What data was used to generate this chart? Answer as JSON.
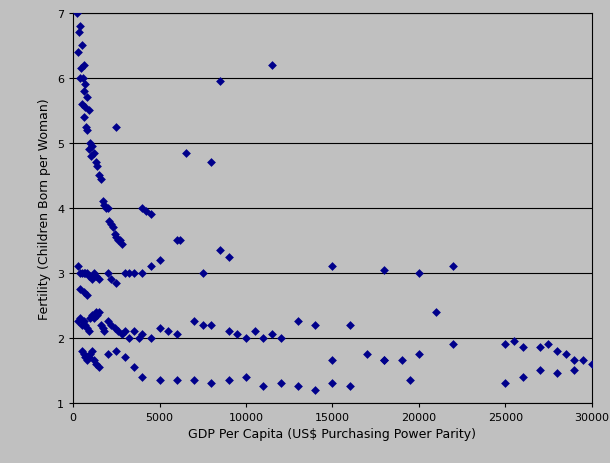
{
  "title": "",
  "xlabel": "GDP Per Capita (US$ Purchasing Power Parity)",
  "ylabel": "Fertility (Children Born per Woman)",
  "xlim": [
    0,
    30000
  ],
  "ylim": [
    1,
    7
  ],
  "xticks": [
    0,
    5000,
    10000,
    15000,
    20000,
    25000,
    30000
  ],
  "yticks": [
    1,
    2,
    3,
    4,
    5,
    6,
    7
  ],
  "background_color": "#c0c0c0",
  "fig_background_color": "#c0c0c0",
  "marker_color": "#00008B",
  "marker_size": 20,
  "points": [
    [
      200,
      7.0
    ],
    [
      400,
      6.8
    ],
    [
      350,
      6.7
    ],
    [
      500,
      6.5
    ],
    [
      300,
      6.4
    ],
    [
      600,
      6.2
    ],
    [
      450,
      6.15
    ],
    [
      400,
      6.0
    ],
    [
      550,
      6.0
    ],
    [
      700,
      5.9
    ],
    [
      600,
      5.8
    ],
    [
      800,
      5.7
    ],
    [
      500,
      5.6
    ],
    [
      700,
      5.55
    ],
    [
      900,
      5.5
    ],
    [
      650,
      5.4
    ],
    [
      750,
      5.25
    ],
    [
      800,
      5.2
    ],
    [
      1000,
      5.0
    ],
    [
      1100,
      4.95
    ],
    [
      900,
      4.9
    ],
    [
      1200,
      4.85
    ],
    [
      1050,
      4.8
    ],
    [
      2500,
      5.25
    ],
    [
      1300,
      4.7
    ],
    [
      1400,
      4.65
    ],
    [
      1500,
      4.5
    ],
    [
      1600,
      4.45
    ],
    [
      6500,
      4.85
    ],
    [
      8000,
      4.7
    ],
    [
      1700,
      4.1
    ],
    [
      1800,
      4.05
    ],
    [
      1900,
      4.0
    ],
    [
      2000,
      4.0
    ],
    [
      4000,
      4.0
    ],
    [
      4200,
      3.95
    ],
    [
      4500,
      3.9
    ],
    [
      2100,
      3.8
    ],
    [
      2200,
      3.75
    ],
    [
      2300,
      3.7
    ],
    [
      2400,
      3.6
    ],
    [
      2500,
      3.55
    ],
    [
      2600,
      3.5
    ],
    [
      2700,
      3.5
    ],
    [
      2800,
      3.45
    ],
    [
      6000,
      3.5
    ],
    [
      6200,
      3.5
    ],
    [
      8500,
      3.35
    ],
    [
      9000,
      3.25
    ],
    [
      300,
      3.1
    ],
    [
      400,
      3.0
    ],
    [
      500,
      3.0
    ],
    [
      600,
      3.0
    ],
    [
      700,
      3.0
    ],
    [
      800,
      3.0
    ],
    [
      900,
      2.95
    ],
    [
      1000,
      2.95
    ],
    [
      1100,
      2.9
    ],
    [
      1200,
      3.0
    ],
    [
      1300,
      2.95
    ],
    [
      1500,
      2.9
    ],
    [
      2000,
      3.0
    ],
    [
      2200,
      2.9
    ],
    [
      2500,
      2.85
    ],
    [
      3000,
      3.0
    ],
    [
      3200,
      3.0
    ],
    [
      3500,
      3.0
    ],
    [
      4000,
      3.0
    ],
    [
      4500,
      3.1
    ],
    [
      5000,
      3.2
    ],
    [
      7500,
      3.0
    ],
    [
      15000,
      3.1
    ],
    [
      18000,
      3.05
    ],
    [
      20000,
      3.0
    ],
    [
      22000,
      3.1
    ],
    [
      300,
      2.25
    ],
    [
      400,
      2.3
    ],
    [
      500,
      2.2
    ],
    [
      600,
      2.25
    ],
    [
      700,
      2.2
    ],
    [
      800,
      2.15
    ],
    [
      900,
      2.1
    ],
    [
      1000,
      2.3
    ],
    [
      1100,
      2.35
    ],
    [
      1200,
      2.3
    ],
    [
      1300,
      2.4
    ],
    [
      1400,
      2.35
    ],
    [
      1500,
      2.4
    ],
    [
      1600,
      2.2
    ],
    [
      1700,
      2.15
    ],
    [
      1800,
      2.1
    ],
    [
      2000,
      2.25
    ],
    [
      2200,
      2.2
    ],
    [
      2400,
      2.15
    ],
    [
      2600,
      2.1
    ],
    [
      2800,
      2.05
    ],
    [
      3000,
      2.1
    ],
    [
      3200,
      2.0
    ],
    [
      3500,
      2.1
    ],
    [
      3800,
      2.0
    ],
    [
      4000,
      2.05
    ],
    [
      4500,
      2.0
    ],
    [
      5000,
      2.15
    ],
    [
      5500,
      2.1
    ],
    [
      6000,
      2.05
    ],
    [
      7000,
      2.25
    ],
    [
      7500,
      2.2
    ],
    [
      8000,
      2.2
    ],
    [
      9000,
      2.1
    ],
    [
      9500,
      2.05
    ],
    [
      10000,
      2.0
    ],
    [
      10500,
      2.1
    ],
    [
      11000,
      2.0
    ],
    [
      11500,
      2.05
    ],
    [
      12000,
      2.0
    ],
    [
      13000,
      2.25
    ],
    [
      14000,
      2.2
    ],
    [
      15000,
      1.65
    ],
    [
      16000,
      2.2
    ],
    [
      17000,
      1.75
    ],
    [
      18000,
      1.65
    ],
    [
      19000,
      1.65
    ],
    [
      20000,
      1.75
    ],
    [
      21000,
      2.4
    ],
    [
      22000,
      1.9
    ],
    [
      25000,
      1.9
    ],
    [
      25500,
      1.95
    ],
    [
      26000,
      1.85
    ],
    [
      27000,
      1.85
    ],
    [
      27500,
      1.9
    ],
    [
      28000,
      1.8
    ],
    [
      28500,
      1.75
    ],
    [
      29000,
      1.65
    ],
    [
      29500,
      1.65
    ],
    [
      30000,
      1.6
    ],
    [
      500,
      1.8
    ],
    [
      600,
      1.75
    ],
    [
      700,
      1.7
    ],
    [
      800,
      1.65
    ],
    [
      900,
      1.7
    ],
    [
      1000,
      1.75
    ],
    [
      1100,
      1.8
    ],
    [
      1200,
      1.65
    ],
    [
      1300,
      1.6
    ],
    [
      1500,
      1.55
    ],
    [
      2000,
      1.75
    ],
    [
      2500,
      1.8
    ],
    [
      3000,
      1.7
    ],
    [
      3500,
      1.55
    ],
    [
      4000,
      1.4
    ],
    [
      5000,
      1.35
    ],
    [
      6000,
      1.35
    ],
    [
      7000,
      1.35
    ],
    [
      8000,
      1.3
    ],
    [
      9000,
      1.35
    ],
    [
      10000,
      1.4
    ],
    [
      11000,
      1.25
    ],
    [
      12000,
      1.3
    ],
    [
      13000,
      1.25
    ],
    [
      14000,
      1.2
    ],
    [
      15000,
      1.3
    ],
    [
      16000,
      1.25
    ],
    [
      18000,
      1.65
    ],
    [
      19500,
      1.35
    ],
    [
      25000,
      1.3
    ],
    [
      26000,
      1.4
    ],
    [
      27000,
      1.5
    ],
    [
      28000,
      1.45
    ],
    [
      29000,
      1.5
    ],
    [
      400,
      2.75
    ],
    [
      600,
      2.7
    ],
    [
      800,
      2.65
    ],
    [
      11500,
      6.2
    ],
    [
      8500,
      5.95
    ]
  ]
}
